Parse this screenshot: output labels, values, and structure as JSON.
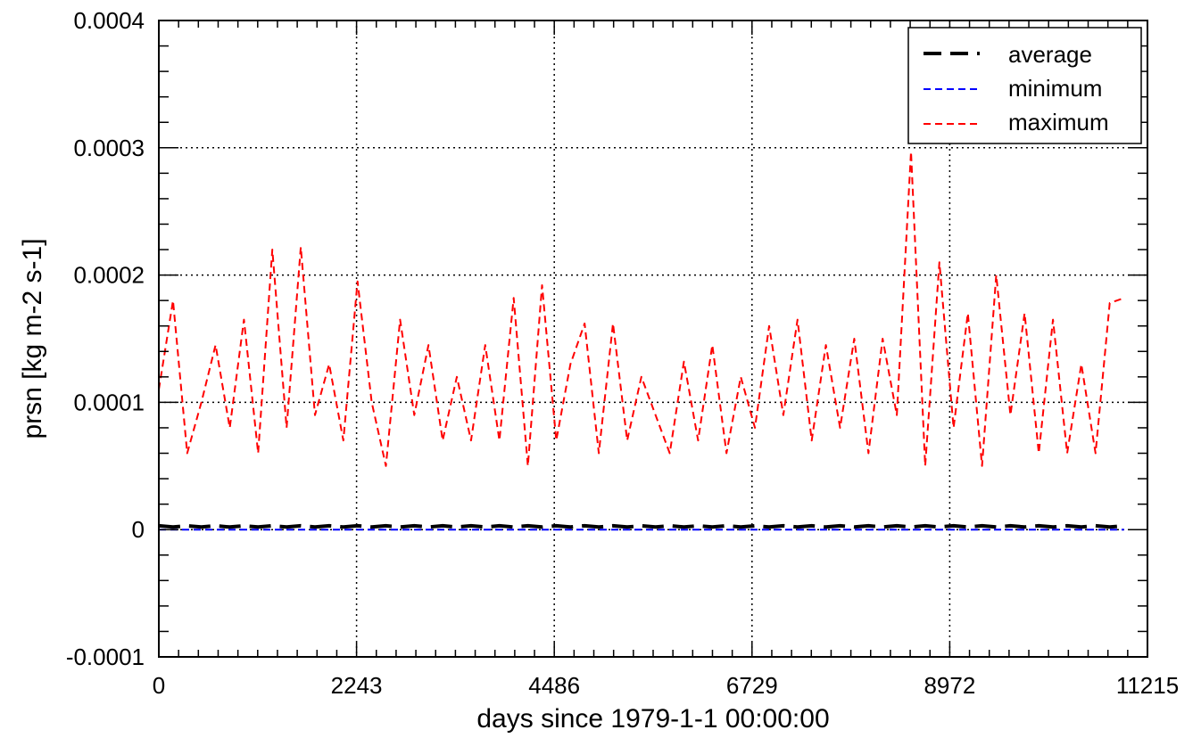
{
  "chart_data": {
    "type": "line",
    "xlabel": "days since 1979-1-1 00:00:00",
    "ylabel": "prsn [kg m-2 s-1]",
    "xlim": [
      0,
      11215
    ],
    "ylim": [
      -0.0001,
      0.0004
    ],
    "x_ticks": [
      0,
      2243,
      4486,
      6729,
      8972,
      11215
    ],
    "x_tick_labels": [
      "0",
      "2243",
      "4486",
      "6729",
      "8972",
      "11215"
    ],
    "y_ticks": [
      -0.0001,
      0,
      0.0001,
      0.0002,
      0.0003,
      0.0004
    ],
    "y_tick_labels": [
      "-0.0001",
      "0",
      "0.0001",
      "0.0002",
      "0.0003",
      "0.0004"
    ],
    "grid": true,
    "legend_position": "top-right",
    "x": [
      0,
      161,
      322,
      483,
      644,
      805,
      966,
      1127,
      1288,
      1449,
      1610,
      1771,
      1932,
      2093,
      2254,
      2415,
      2576,
      2737,
      2898,
      3059,
      3220,
      3381,
      3542,
      3703,
      3864,
      4025,
      4186,
      4347,
      4508,
      4669,
      4830,
      4991,
      5152,
      5313,
      5474,
      5635,
      5796,
      5957,
      6118,
      6279,
      6440,
      6601,
      6762,
      6923,
      7084,
      7245,
      7406,
      7567,
      7728,
      7889,
      8050,
      8211,
      8372,
      8533,
      8694,
      8855,
      9016,
      9177,
      9338,
      9499,
      9660,
      9821,
      9982,
      10143,
      10304,
      10465,
      10626,
      10787,
      10950
    ],
    "series": [
      {
        "name": "average",
        "color": "#000000",
        "dash": "long",
        "values": [
          3e-06,
          2e-06,
          3e-06,
          2e-06,
          3e-06,
          2e-06,
          3e-06,
          2e-06,
          3e-06,
          2e-06,
          3e-06,
          2e-06,
          3e-06,
          2e-06,
          3e-06,
          2e-06,
          3e-06,
          2e-06,
          3e-06,
          2e-06,
          3e-06,
          2e-06,
          3e-06,
          2e-06,
          3e-06,
          2e-06,
          3e-06,
          2e-06,
          3e-06,
          2e-06,
          3e-06,
          2e-06,
          3e-06,
          2e-06,
          3e-06,
          2e-06,
          3e-06,
          2e-06,
          3e-06,
          2e-06,
          3e-06,
          2e-06,
          3e-06,
          2e-06,
          3e-06,
          2e-06,
          3e-06,
          2e-06,
          3e-06,
          2e-06,
          3e-06,
          2e-06,
          3e-06,
          2e-06,
          3e-06,
          2e-06,
          3e-06,
          2e-06,
          3e-06,
          2e-06,
          3e-06,
          2e-06,
          3e-06,
          2e-06,
          3e-06,
          2e-06,
          3e-06,
          2e-06,
          3e-06
        ]
      },
      {
        "name": "minimum",
        "color": "#0000ff",
        "dash": "short",
        "values": [
          0,
          0,
          0,
          0,
          0,
          0,
          0,
          0,
          0,
          0,
          0,
          0,
          0,
          0,
          0,
          0,
          0,
          0,
          0,
          0,
          0,
          0,
          0,
          0,
          0,
          0,
          0,
          0,
          0,
          0,
          0,
          0,
          0,
          0,
          0,
          0,
          0,
          0,
          0,
          0,
          0,
          0,
          0,
          0,
          0,
          0,
          0,
          0,
          0,
          0,
          0,
          0,
          0,
          0,
          0,
          0,
          0,
          0,
          0,
          0,
          0,
          0,
          0,
          0,
          0,
          0,
          0,
          0,
          0
        ]
      },
      {
        "name": "maximum",
        "color": "#ff0000",
        "dash": "short",
        "values": [
          0.00011,
          0.00018,
          6e-05,
          0.0001,
          0.000145,
          8e-05,
          0.000165,
          6e-05,
          0.00022,
          8e-05,
          0.000222,
          9e-05,
          0.00013,
          7e-05,
          0.000195,
          0.0001,
          5e-05,
          0.000165,
          9e-05,
          0.000145,
          7e-05,
          0.00012,
          7e-05,
          0.000145,
          7e-05,
          0.000182,
          5e-05,
          0.000192,
          7e-05,
          0.00013,
          0.000162,
          6e-05,
          0.000162,
          7e-05,
          0.00012,
          9e-05,
          6e-05,
          0.000132,
          7e-05,
          0.000145,
          6e-05,
          0.00012,
          8e-05,
          0.00016,
          9e-05,
          0.000165,
          7e-05,
          0.000145,
          8e-05,
          0.00015,
          6e-05,
          0.00015,
          9e-05,
          0.000297,
          5e-05,
          0.00021,
          8e-05,
          0.00017,
          5e-05,
          0.0002,
          9e-05,
          0.00017,
          6e-05,
          0.000165,
          6e-05,
          0.00013,
          6e-05,
          0.000178,
          0.000182
        ]
      }
    ]
  }
}
